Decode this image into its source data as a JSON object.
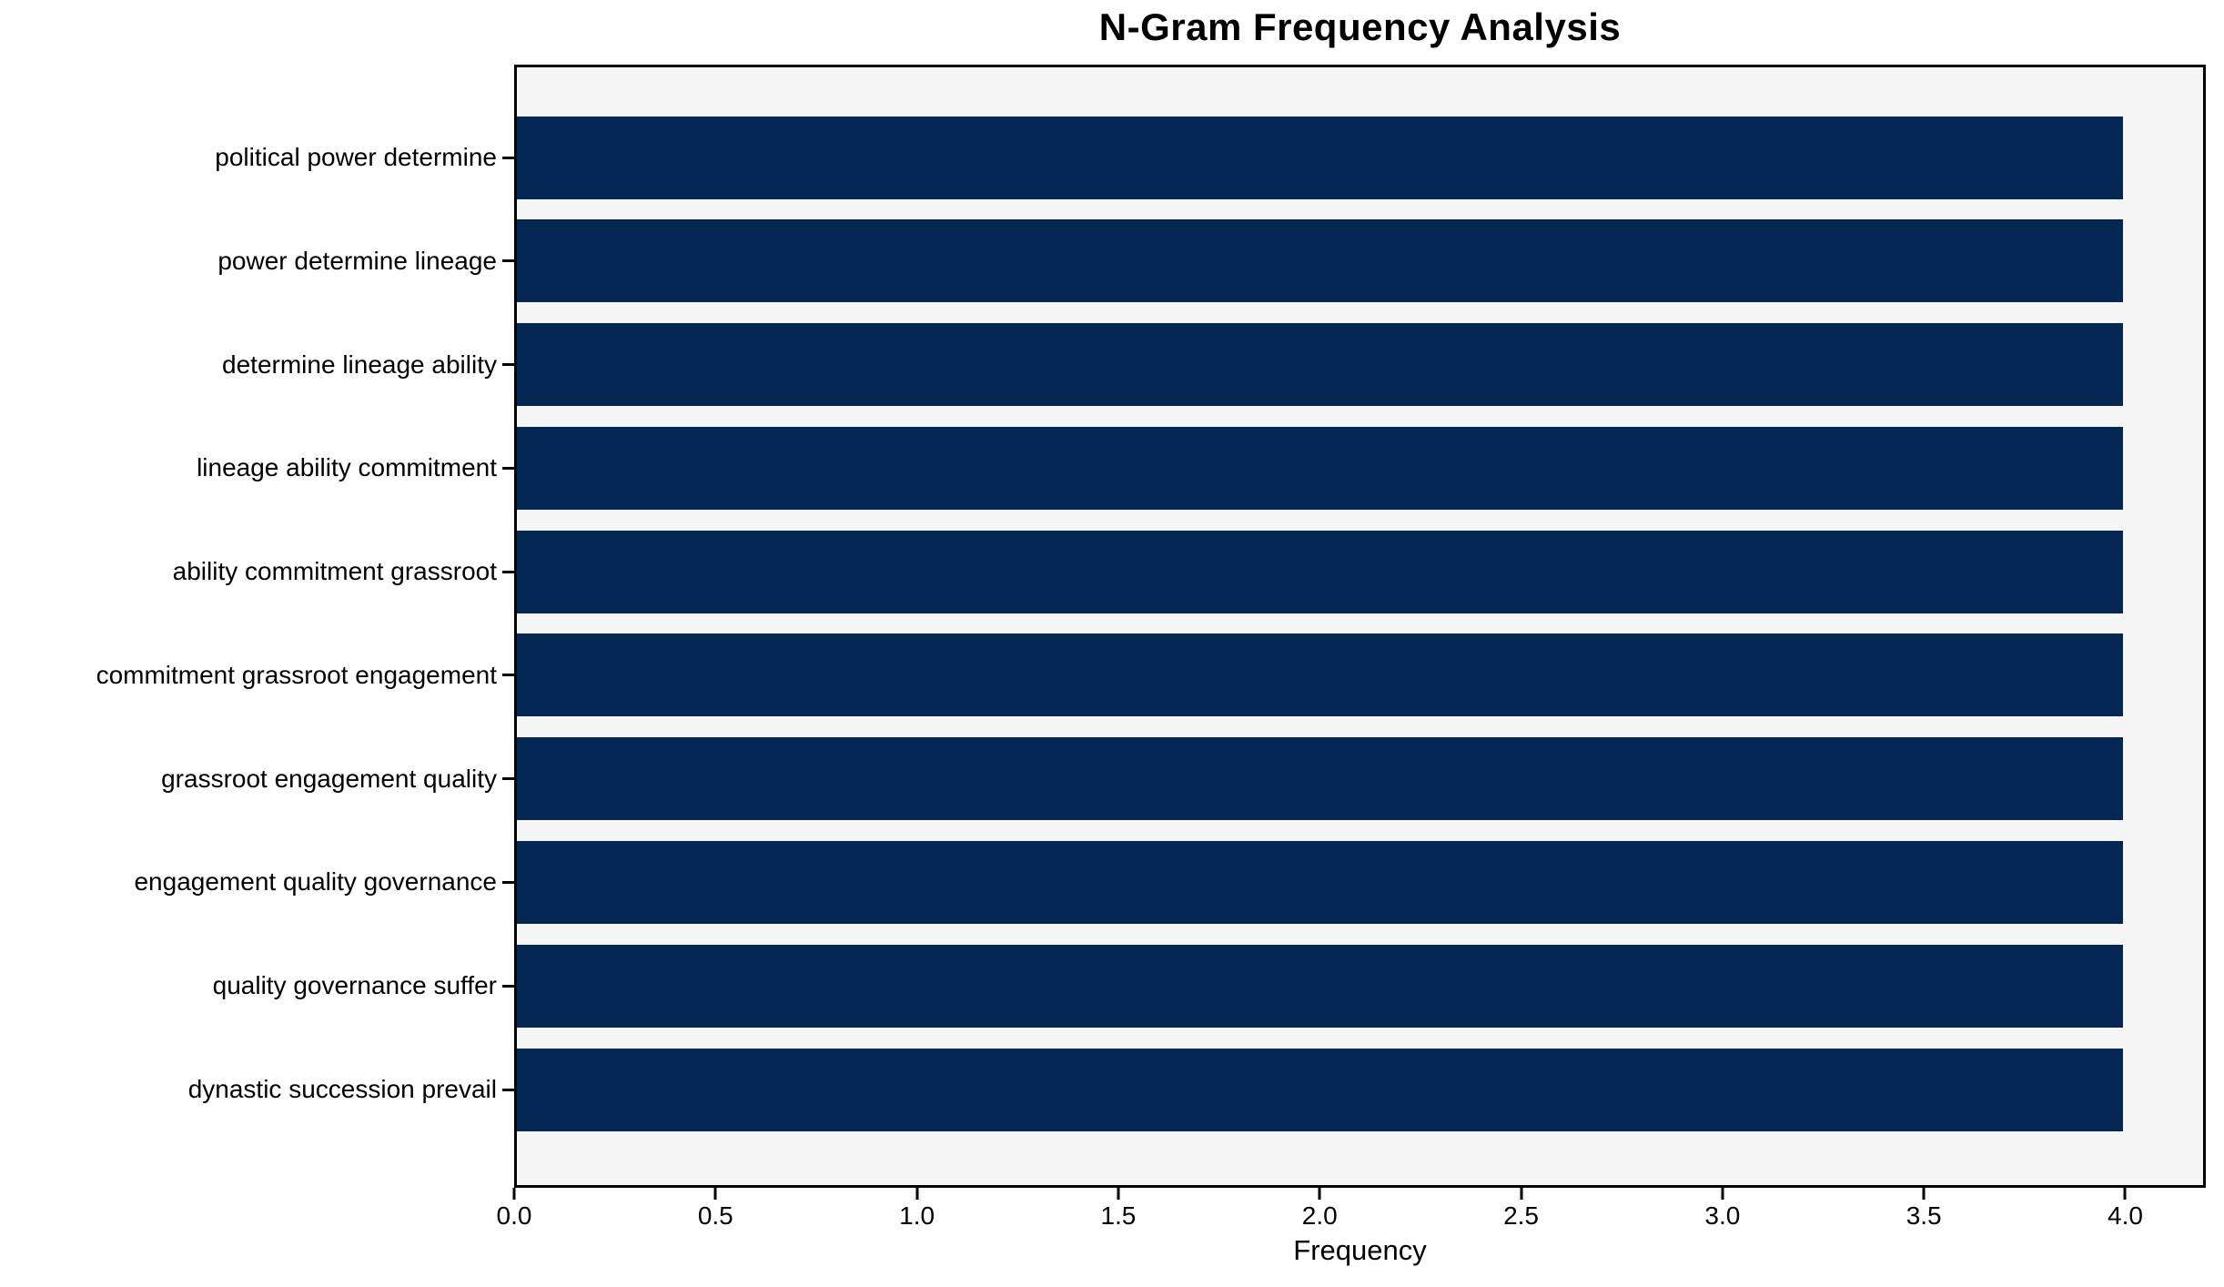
{
  "title": "N-Gram Frequency Analysis",
  "chart_data": {
    "type": "bar",
    "orientation": "horizontal",
    "title": "N-Gram Frequency Analysis",
    "xlabel": "Frequency",
    "ylabel": "",
    "categories": [
      "political power determine",
      "power determine lineage",
      "determine lineage ability",
      "lineage ability commitment",
      "ability commitment grassroot",
      "commitment grassroot engagement",
      "grassroot engagement quality",
      "engagement quality governance",
      "quality governance suffer",
      "dynastic succession prevail"
    ],
    "values": [
      4,
      4,
      4,
      4,
      4,
      4,
      4,
      4,
      4,
      4
    ],
    "x_ticks": [
      "0.0",
      "0.5",
      "1.0",
      "1.5",
      "2.0",
      "2.5",
      "3.0",
      "3.5",
      "4.0"
    ],
    "x_tick_values": [
      0,
      0.5,
      1,
      1.5,
      2,
      2.5,
      3,
      3.5,
      4
    ],
    "xlim": [
      0,
      4.2
    ],
    "grid": false,
    "legend": null,
    "bar_color": "#032752",
    "plot_background": "#f5f5f5",
    "spine_color": "#000000"
  }
}
